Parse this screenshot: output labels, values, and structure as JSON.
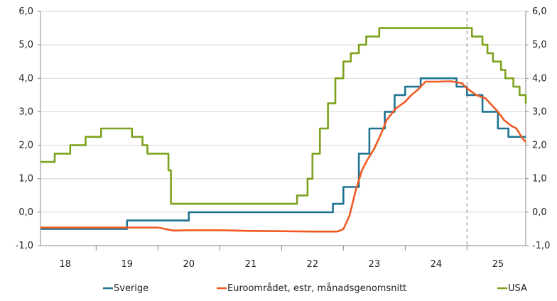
{
  "chart_data": {
    "type": "line",
    "title": "",
    "xlabel": "",
    "ylabel": "",
    "ylim": [
      -1,
      6
    ],
    "xlim": [
      2017.6,
      2025.45
    ],
    "y_ticks": [
      "-1,0",
      "0,0",
      "1,0",
      "2,0",
      "3,0",
      "4,0",
      "5,0",
      "6,0"
    ],
    "x_tick_labels": [
      {
        "label": "18",
        "x": 2018.0
      },
      {
        "label": "19",
        "x": 2019.0
      },
      {
        "label": "20",
        "x": 2020.0
      },
      {
        "label": "21",
        "x": 2021.0
      },
      {
        "label": "22",
        "x": 2022.0
      },
      {
        "label": "23",
        "x": 2023.0
      },
      {
        "label": "24",
        "x": 2024.0
      },
      {
        "label": "25",
        "x": 2025.0
      }
    ],
    "year_separators": [
      2018.5,
      2019.5,
      2020.5,
      2021.5,
      2022.5,
      2023.5,
      2024.5
    ],
    "forecast_line_x": 2024.5,
    "grid": true,
    "legend_position": "bottom",
    "series": [
      {
        "name": "Sverige",
        "color": "#1f7391",
        "step": true,
        "points": [
          [
            2017.6,
            -0.5
          ],
          [
            2019.0,
            -0.25
          ],
          [
            2020.0,
            0.0
          ],
          [
            2022.33,
            0.25
          ],
          [
            2022.5,
            0.75
          ],
          [
            2022.75,
            1.75
          ],
          [
            2022.92,
            2.5
          ],
          [
            2023.17,
            3.0
          ],
          [
            2023.33,
            3.5
          ],
          [
            2023.5,
            3.75
          ],
          [
            2023.75,
            4.0
          ],
          [
            2024.33,
            3.75
          ],
          [
            2024.5,
            3.5
          ],
          [
            2024.75,
            3.0
          ],
          [
            2025.0,
            2.5
          ],
          [
            2025.17,
            2.25
          ],
          [
            2025.45,
            2.25
          ]
        ]
      },
      {
        "name": "Euroområdet, estr, månadsgenomsnitt",
        "color": "#f05a22",
        "step": false,
        "points": [
          [
            2017.6,
            -0.46
          ],
          [
            2018.5,
            -0.46
          ],
          [
            2019.0,
            -0.46
          ],
          [
            2019.5,
            -0.46
          ],
          [
            2019.75,
            -0.55
          ],
          [
            2020.0,
            -0.54
          ],
          [
            2020.5,
            -0.54
          ],
          [
            2021.0,
            -0.56
          ],
          [
            2021.5,
            -0.57
          ],
          [
            2022.0,
            -0.58
          ],
          [
            2022.4,
            -0.58
          ],
          [
            2022.5,
            -0.51
          ],
          [
            2022.6,
            -0.1
          ],
          [
            2022.7,
            0.65
          ],
          [
            2022.8,
            1.25
          ],
          [
            2022.9,
            1.6
          ],
          [
            2023.0,
            1.9
          ],
          [
            2023.1,
            2.3
          ],
          [
            2023.2,
            2.75
          ],
          [
            2023.35,
            3.1
          ],
          [
            2023.5,
            3.3
          ],
          [
            2023.6,
            3.5
          ],
          [
            2023.7,
            3.65
          ],
          [
            2023.83,
            3.9
          ],
          [
            2024.0,
            3.9
          ],
          [
            2024.25,
            3.91
          ],
          [
            2024.42,
            3.85
          ],
          [
            2024.5,
            3.7
          ],
          [
            2024.65,
            3.5
          ],
          [
            2024.8,
            3.4
          ],
          [
            2024.92,
            3.16
          ],
          [
            2025.0,
            3.0
          ],
          [
            2025.1,
            2.75
          ],
          [
            2025.2,
            2.6
          ],
          [
            2025.3,
            2.5
          ],
          [
            2025.4,
            2.2
          ],
          [
            2025.45,
            2.1
          ]
        ]
      },
      {
        "name": "USA",
        "color": "#7ca21d",
        "step": true,
        "points": [
          [
            2017.6,
            1.5
          ],
          [
            2017.83,
            1.75
          ],
          [
            2018.08,
            2.0
          ],
          [
            2018.33,
            2.25
          ],
          [
            2018.58,
            2.5
          ],
          [
            2019.08,
            2.25
          ],
          [
            2019.25,
            2.0
          ],
          [
            2019.33,
            1.75
          ],
          [
            2019.67,
            1.25
          ],
          [
            2019.71,
            0.25
          ],
          [
            2021.75,
            0.5
          ],
          [
            2021.92,
            1.0
          ],
          [
            2022.0,
            1.75
          ],
          [
            2022.12,
            2.5
          ],
          [
            2022.25,
            3.25
          ],
          [
            2022.37,
            4.0
          ],
          [
            2022.5,
            4.5
          ],
          [
            2022.62,
            4.75
          ],
          [
            2022.75,
            5.0
          ],
          [
            2022.87,
            5.25
          ],
          [
            2023.08,
            5.5
          ],
          [
            2024.25,
            5.5
          ],
          [
            2024.58,
            5.25
          ],
          [
            2024.75,
            5.0
          ],
          [
            2024.83,
            4.75
          ],
          [
            2024.92,
            4.5
          ],
          [
            2025.05,
            4.25
          ],
          [
            2025.12,
            4.0
          ],
          [
            2025.25,
            3.75
          ],
          [
            2025.35,
            3.5
          ],
          [
            2025.45,
            3.25
          ]
        ]
      }
    ]
  }
}
